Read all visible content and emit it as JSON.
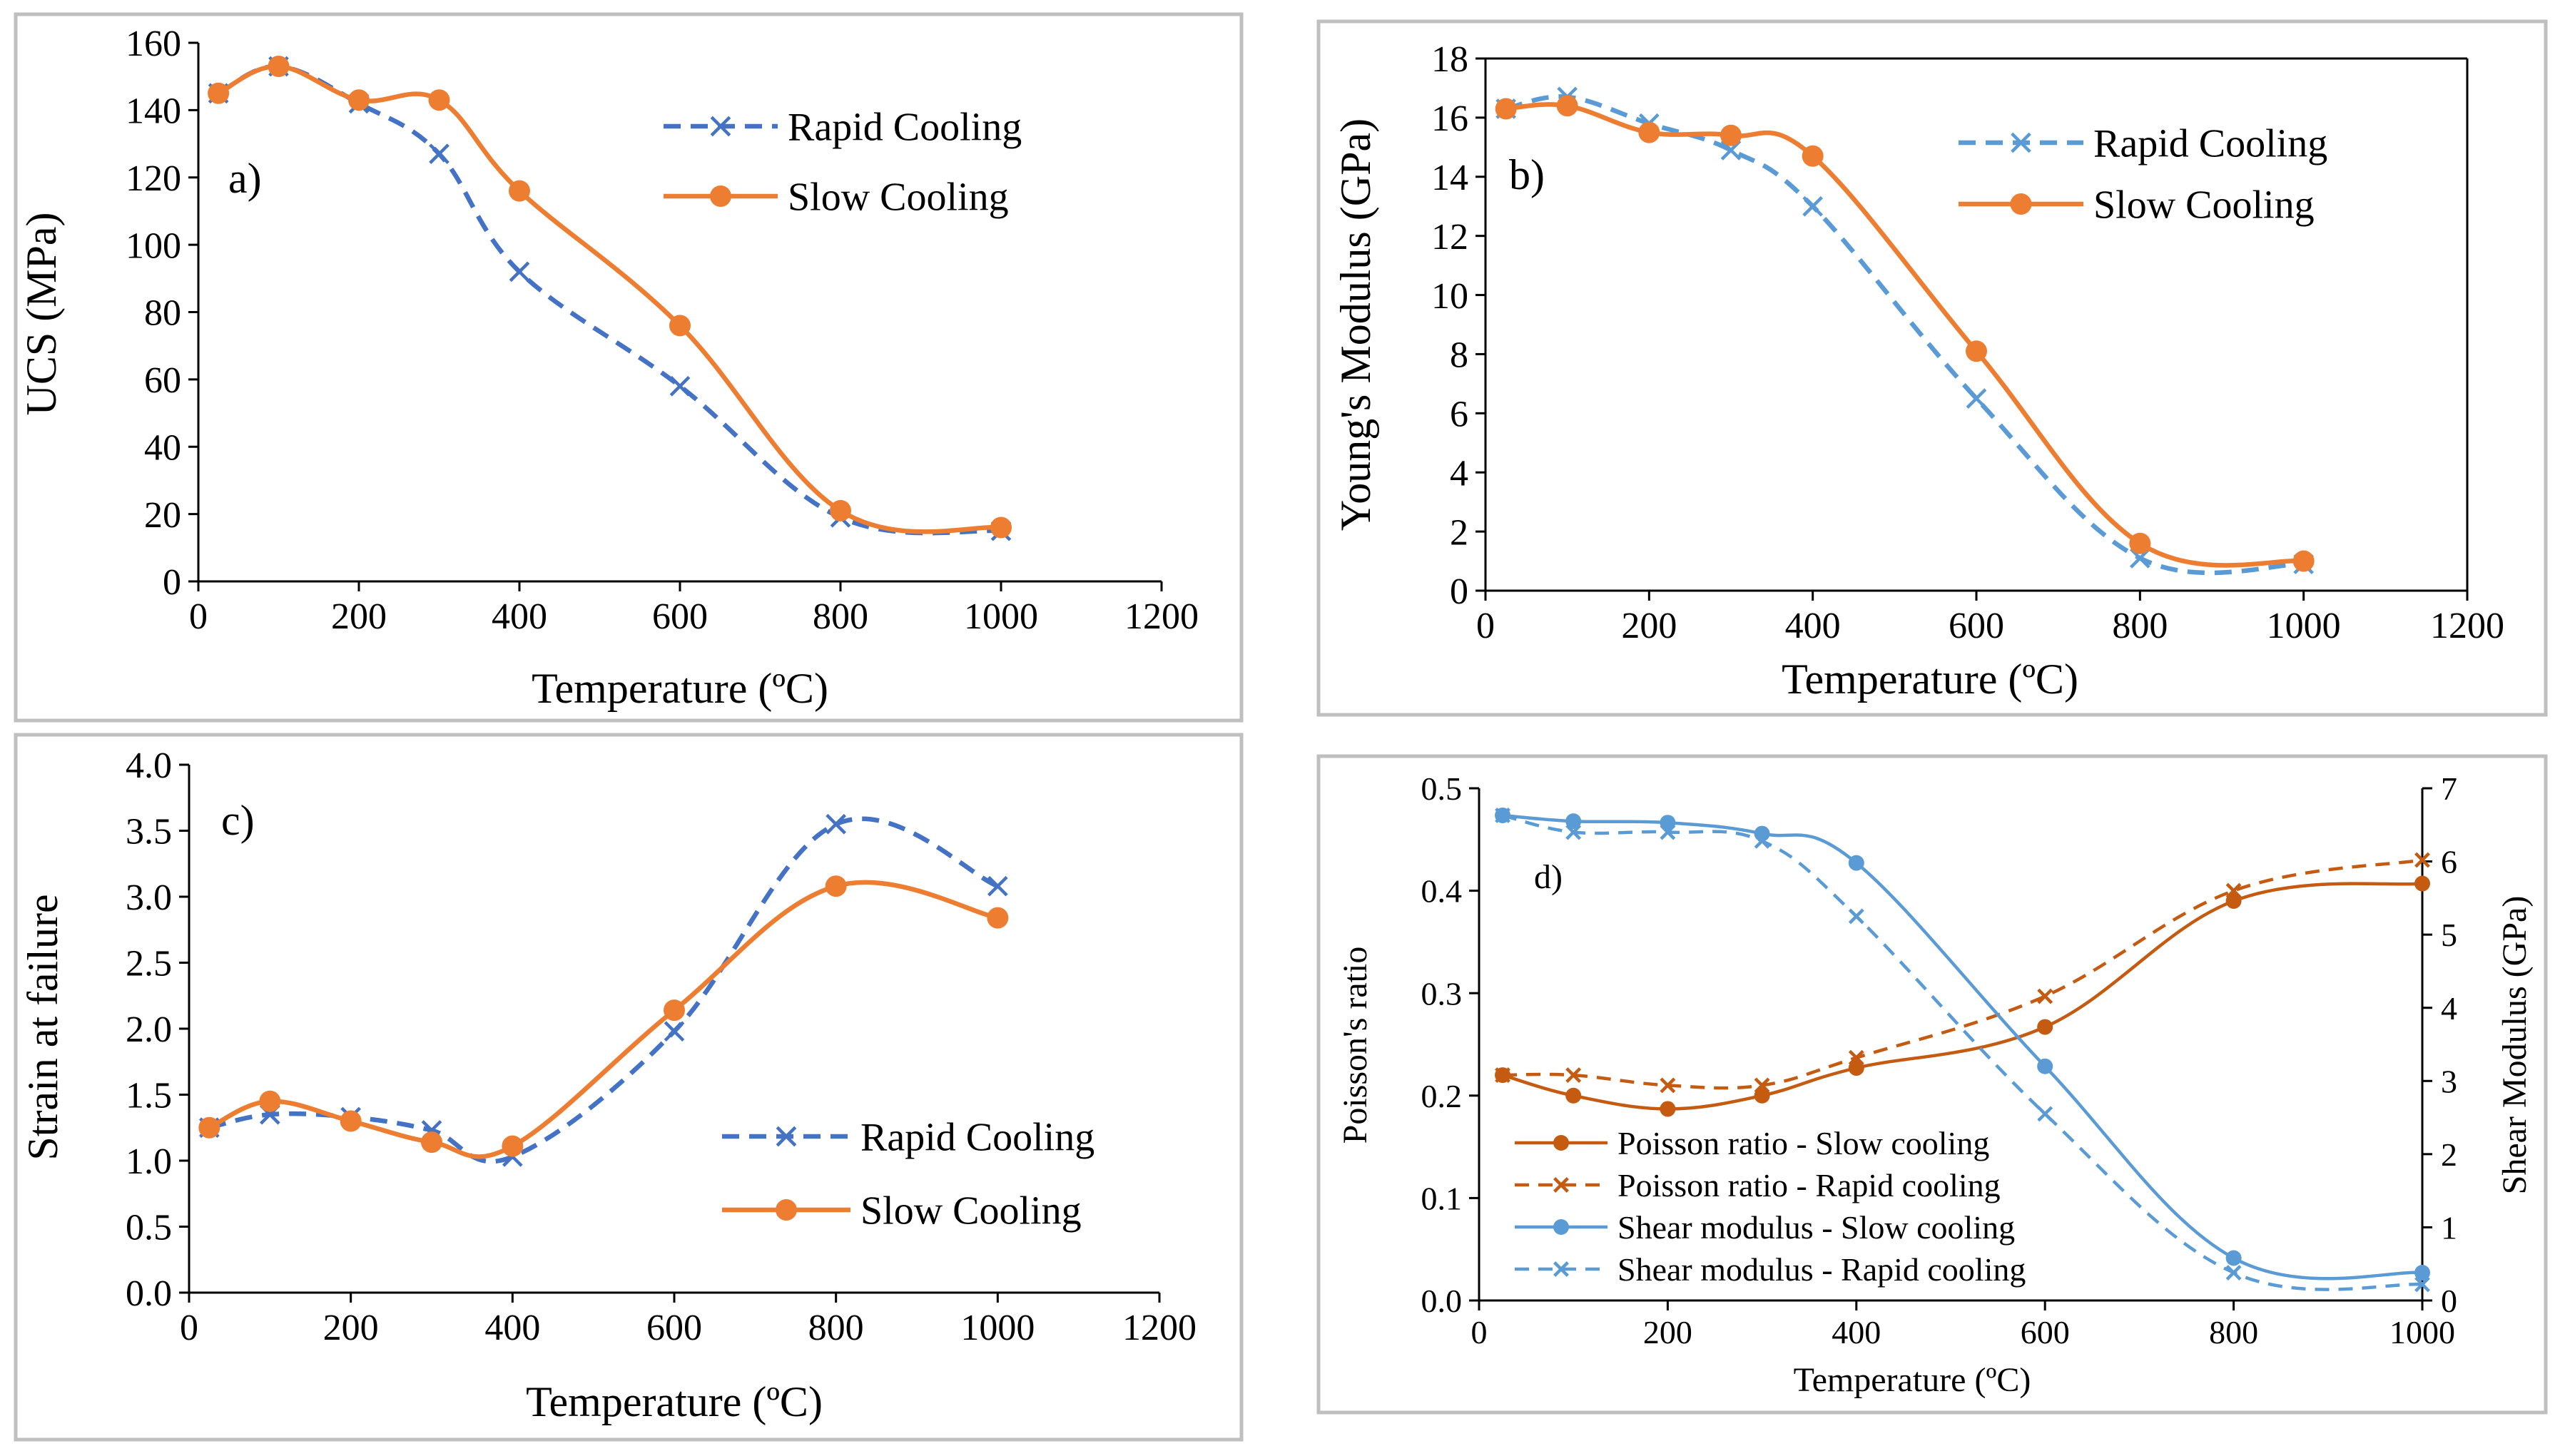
{
  "colors": {
    "rapid": "#4472C4",
    "slow": "#ED7D31",
    "poisson": "#C55A11",
    "shear": "#5B9BD5"
  },
  "chart_data": [
    {
      "id": "a",
      "type": "line",
      "panel_label": "a)",
      "xlabel": "Temperature (ºC)",
      "ylabel": "UCS (MPa)",
      "xlim": [
        0,
        1200
      ],
      "ylim": [
        0,
        160
      ],
      "xticks": [
        0,
        200,
        400,
        600,
        800,
        1000,
        1200
      ],
      "yticks": [
        0,
        20,
        40,
        60,
        80,
        100,
        120,
        140,
        160
      ],
      "x": [
        25,
        100,
        200,
        300,
        400,
        600,
        800,
        1000
      ],
      "legend": "top-right",
      "series": [
        {
          "name": "Rapid Cooling",
          "style": "dashed-x",
          "color_key": "rapid",
          "values": [
            145,
            153,
            142,
            127,
            92,
            58,
            19,
            15
          ]
        },
        {
          "name": "Slow Cooling",
          "style": "solid-dot",
          "color_key": "slow",
          "values": [
            145,
            153,
            143,
            143,
            116,
            76,
            21,
            16
          ]
        }
      ]
    },
    {
      "id": "b",
      "type": "line",
      "panel_label": "b)",
      "xlabel": "Temperature (ºC)",
      "ylabel": "Young's Modulus (GPa)",
      "xlim": [
        0,
        1200
      ],
      "ylim": [
        0,
        18
      ],
      "xticks": [
        0,
        200,
        400,
        600,
        800,
        1000,
        1200
      ],
      "yticks": [
        0,
        2,
        4,
        6,
        8,
        10,
        12,
        14,
        16,
        18
      ],
      "x": [
        25,
        100,
        200,
        300,
        400,
        600,
        800,
        1000
      ],
      "legend": "top-right",
      "series": [
        {
          "name": "Rapid Cooling",
          "style": "dashed-x",
          "color_key": "shear",
          "values": [
            16.3,
            16.7,
            15.8,
            14.9,
            13.0,
            6.5,
            1.1,
            0.9
          ]
        },
        {
          "name": "Slow Cooling",
          "style": "solid-dot",
          "color_key": "slow",
          "values": [
            16.3,
            16.4,
            15.5,
            15.4,
            14.7,
            8.1,
            1.6,
            1.0
          ]
        }
      ]
    },
    {
      "id": "c",
      "type": "line",
      "panel_label": "c)",
      "xlabel": "Temperature (ºC)",
      "ylabel": "Strain at failure",
      "xlim": [
        0,
        1200
      ],
      "ylim": [
        0,
        4
      ],
      "xticks": [
        0,
        200,
        400,
        600,
        800,
        1000,
        1200
      ],
      "yticks": [
        0,
        0.5,
        1,
        1.5,
        2,
        2.5,
        3,
        3.5,
        4
      ],
      "ytick_labels": [
        "0.0",
        "0.5",
        "1.0",
        "1.5",
        "2.0",
        "2.5",
        "3.0",
        "3.5",
        "4.0"
      ],
      "x": [
        25,
        100,
        200,
        300,
        400,
        600,
        800,
        1000
      ],
      "legend": "bottom-right",
      "series": [
        {
          "name": "Rapid Cooling",
          "style": "dashed-x",
          "color_key": "rapid",
          "values": [
            1.25,
            1.35,
            1.33,
            1.23,
            1.03,
            1.98,
            3.55,
            3.08
          ]
        },
        {
          "name": "Slow Cooling",
          "style": "solid-dot",
          "color_key": "slow",
          "values": [
            1.25,
            1.45,
            1.3,
            1.14,
            1.11,
            2.14,
            3.08,
            2.84
          ]
        }
      ]
    },
    {
      "id": "d",
      "type": "line",
      "panel_label": "d)",
      "xlabel": "Temperature (ºC)",
      "ylabel": "Poisson's ratio",
      "y2label": "Shear Modulus (GPa)",
      "xlim": [
        0,
        1000
      ],
      "ylim": [
        0,
        0.5
      ],
      "y2lim": [
        0,
        7
      ],
      "xticks": [
        0,
        200,
        400,
        600,
        800,
        1000
      ],
      "yticks": [
        0,
        0.1,
        0.2,
        0.3,
        0.4,
        0.5
      ],
      "ytick_labels": [
        "0.0",
        "0.1",
        "0.2",
        "0.3",
        "0.4",
        "0.5"
      ],
      "y2ticks": [
        0,
        1,
        2,
        3,
        4,
        5,
        6,
        7
      ],
      "x": [
        25,
        100,
        200,
        300,
        400,
        600,
        800,
        1000
      ],
      "legend": "bottom-left",
      "series": [
        {
          "name": "Poisson ratio - Slow cooling",
          "style": "solid-dot",
          "axis": "left",
          "color_key": "poisson",
          "values": [
            0.22,
            0.2,
            0.187,
            0.2,
            0.227,
            0.267,
            0.39,
            0.407
          ]
        },
        {
          "name": "Poisson ratio - Rapid cooling",
          "style": "dashed-x",
          "axis": "left",
          "color_key": "poisson",
          "values": [
            0.22,
            0.22,
            0.21,
            0.21,
            0.237,
            0.297,
            0.4,
            0.43
          ]
        },
        {
          "name": "Shear modulus - Slow cooling",
          "style": "solid-dot",
          "axis": "right",
          "color_key": "shear",
          "values": [
            6.63,
            6.55,
            6.53,
            6.38,
            5.98,
            3.2,
            0.58,
            0.38
          ]
        },
        {
          "name": "Shear modulus - Rapid cooling",
          "style": "dashed-x",
          "axis": "right",
          "color_key": "shear",
          "values": [
            6.63,
            6.4,
            6.4,
            6.28,
            5.25,
            2.55,
            0.38,
            0.22
          ]
        }
      ]
    }
  ]
}
